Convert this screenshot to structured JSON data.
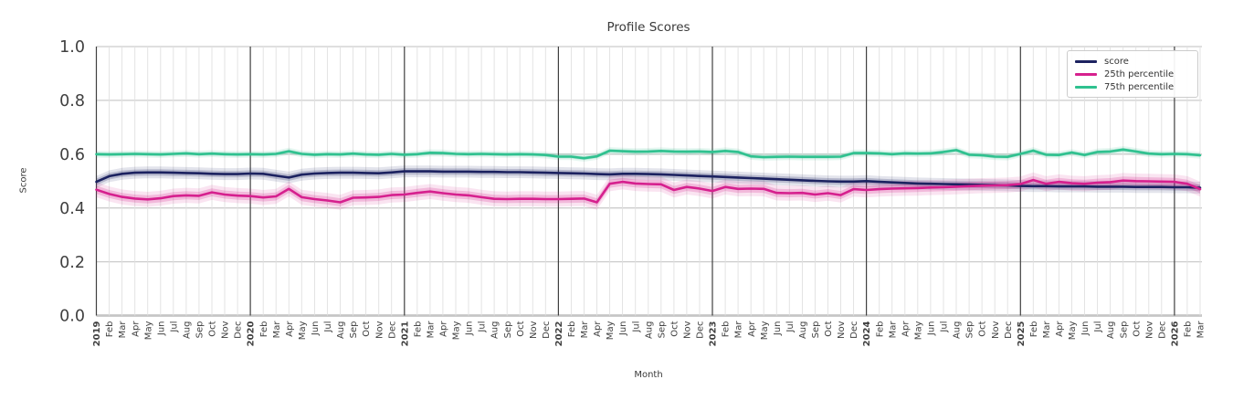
{
  "chart_data": {
    "type": "line",
    "title": "Profile Scores",
    "xlabel": "Month",
    "ylabel": "Score",
    "ylim": [
      0.0,
      1.0
    ],
    "ytick_labels": [
      "0.0",
      "0.2",
      "0.4",
      "0.6",
      "0.8",
      "1.0"
    ],
    "grid": true,
    "legend_position": "upper right",
    "x_labels": [
      "2019",
      "Feb",
      "Mar",
      "Apr",
      "May",
      "Jun",
      "Jul",
      "Aug",
      "Sep",
      "Oct",
      "Nov",
      "Dec",
      "2020",
      "Feb",
      "Mar",
      "Apr",
      "May",
      "Jun",
      "Jul",
      "Aug",
      "Sep",
      "Oct",
      "Nov",
      "Dec",
      "2021",
      "Feb",
      "Mar",
      "Apr",
      "May",
      "Jun",
      "Jul",
      "Aug",
      "Sep",
      "Oct",
      "Nov",
      "Dec",
      "2022",
      "Feb",
      "Mar",
      "Apr",
      "May",
      "Jun",
      "Jul",
      "Aug",
      "Sep",
      "Oct",
      "Nov",
      "Dec",
      "2023",
      "Feb",
      "Mar",
      "Apr",
      "May",
      "Jun",
      "Jul",
      "Aug",
      "Sep",
      "Oct",
      "Nov",
      "Dec",
      "2024",
      "Feb",
      "Mar",
      "Apr",
      "May",
      "Jun",
      "Jul",
      "Aug",
      "Sep",
      "Oct",
      "Nov",
      "Dec",
      "2025",
      "Feb",
      "Mar",
      "Apr",
      "May",
      "Jun",
      "Jul",
      "Aug",
      "Sep",
      "Oct",
      "Nov",
      "Dec",
      "2026",
      "Feb",
      "Mar"
    ],
    "year_tick_indices": [
      0,
      12,
      24,
      36,
      48,
      60,
      72,
      84
    ],
    "series": [
      {
        "name": "score",
        "color": "#1c2260",
        "band_inner": 0.012,
        "band_outer": 0.022,
        "values": [
          0.497,
          0.518,
          0.527,
          0.531,
          0.532,
          0.532,
          0.531,
          0.53,
          0.529,
          0.527,
          0.526,
          0.526,
          0.528,
          0.527,
          0.52,
          0.513,
          0.524,
          0.528,
          0.53,
          0.531,
          0.531,
          0.53,
          0.529,
          0.532,
          0.536,
          0.536,
          0.536,
          0.535,
          0.535,
          0.535,
          0.534,
          0.534,
          0.533,
          0.533,
          0.532,
          0.531,
          0.53,
          0.529,
          0.528,
          0.526,
          0.525,
          0.527,
          0.527,
          0.526,
          0.525,
          0.523,
          0.521,
          0.519,
          0.517,
          0.515,
          0.513,
          0.511,
          0.509,
          0.507,
          0.505,
          0.503,
          0.501,
          0.499,
          0.498,
          0.498,
          0.5,
          0.497,
          0.495,
          0.493,
          0.491,
          0.49,
          0.489,
          0.488,
          0.487,
          0.486,
          0.485,
          0.484,
          0.482,
          0.481,
          0.481,
          0.48,
          0.48,
          0.48,
          0.479,
          0.479,
          0.479,
          0.478,
          0.478,
          0.478,
          0.477,
          0.477,
          0.475
        ]
      },
      {
        "name": "25th percentile",
        "color": "#d6208e",
        "band_inner": 0.015,
        "band_outer": 0.028,
        "values": [
          0.468,
          0.452,
          0.441,
          0.435,
          0.432,
          0.436,
          0.444,
          0.447,
          0.445,
          0.458,
          0.45,
          0.446,
          0.444,
          0.439,
          0.443,
          0.471,
          0.44,
          0.433,
          0.428,
          0.421,
          0.438,
          0.439,
          0.441,
          0.448,
          0.45,
          0.456,
          0.461,
          0.455,
          0.45,
          0.447,
          0.44,
          0.434,
          0.433,
          0.434,
          0.434,
          0.433,
          0.433,
          0.434,
          0.435,
          0.421,
          0.49,
          0.497,
          0.491,
          0.489,
          0.488,
          0.467,
          0.478,
          0.472,
          0.463,
          0.478,
          0.471,
          0.472,
          0.471,
          0.456,
          0.455,
          0.456,
          0.45,
          0.455,
          0.448,
          0.47,
          0.467,
          0.47,
          0.472,
          0.473,
          0.474,
          0.476,
          0.477,
          0.479,
          0.481,
          0.483,
          0.484,
          0.485,
          0.489,
          0.504,
          0.49,
          0.497,
          0.492,
          0.49,
          0.494,
          0.496,
          0.502,
          0.5,
          0.499,
          0.498,
          0.497,
          0.49,
          0.47
        ]
      },
      {
        "name": "75th percentile",
        "color": "#2fc18f",
        "band_inner": 0.007,
        "band_outer": 0.013,
        "values": [
          0.6,
          0.599,
          0.6,
          0.601,
          0.6,
          0.599,
          0.601,
          0.603,
          0.6,
          0.602,
          0.6,
          0.599,
          0.6,
          0.599,
          0.601,
          0.611,
          0.601,
          0.598,
          0.6,
          0.599,
          0.602,
          0.599,
          0.598,
          0.601,
          0.598,
          0.6,
          0.605,
          0.604,
          0.601,
          0.6,
          0.601,
          0.6,
          0.599,
          0.6,
          0.599,
          0.597,
          0.591,
          0.591,
          0.585,
          0.592,
          0.613,
          0.611,
          0.609,
          0.61,
          0.612,
          0.61,
          0.609,
          0.61,
          0.608,
          0.612,
          0.608,
          0.592,
          0.589,
          0.59,
          0.591,
          0.59,
          0.59,
          0.59,
          0.591,
          0.604,
          0.604,
          0.603,
          0.6,
          0.603,
          0.602,
          0.603,
          0.608,
          0.615,
          0.598,
          0.596,
          0.591,
          0.59,
          0.601,
          0.613,
          0.598,
          0.597,
          0.606,
          0.597,
          0.608,
          0.61,
          0.617,
          0.61,
          0.602,
          0.6,
          0.601,
          0.6,
          0.596
        ]
      }
    ]
  }
}
